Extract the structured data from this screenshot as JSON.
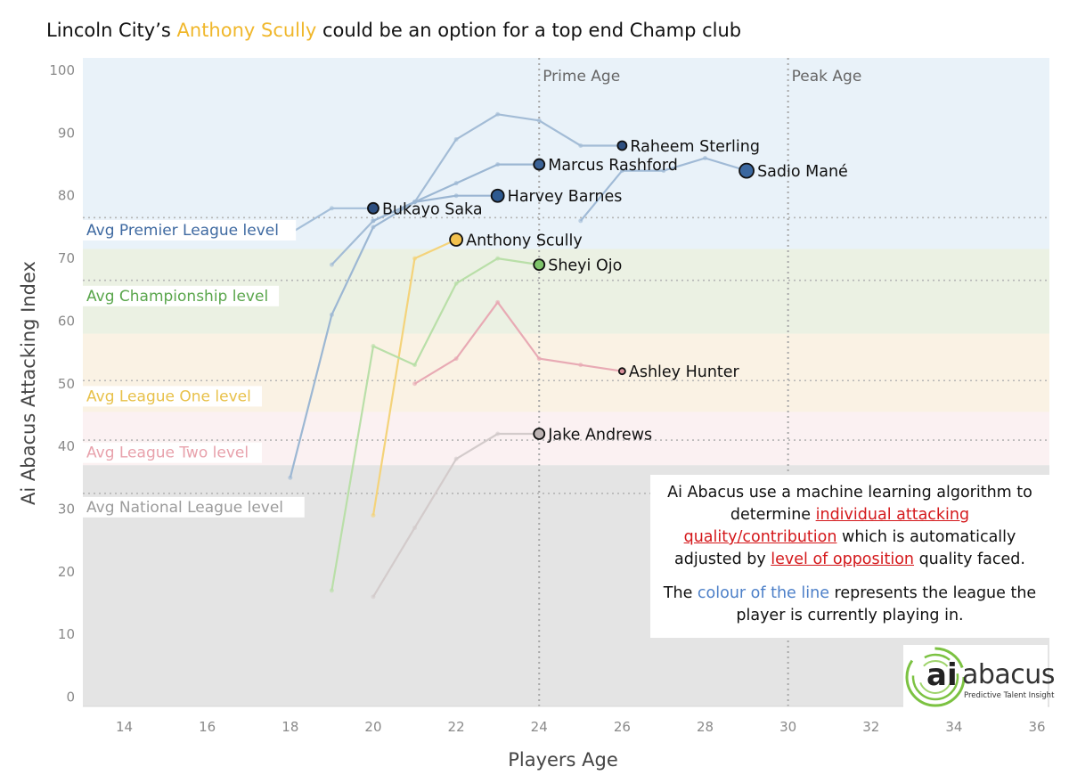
{
  "title": {
    "prefix": "Lincoln City’s ",
    "highlight": "Anthony Scully",
    "suffix": " could be an option for a top end Champ club"
  },
  "note": {
    "p1_a": "Ai Abacus use a machine learning algorithm to determine ",
    "p1_link1": "individual attacking quality/contribution",
    "p1_b": " which is automatically adjusted by ",
    "p1_link2": "level of opposition",
    "p1_c": " quality faced.",
    "p2_a": "The ",
    "p2_blue": "colour of the line",
    "p2_b": " represents the league the player is currently playing in."
  },
  "logo": {
    "mark": "ai",
    "name": "abacus",
    "tagline": "Predictive Talent Insight",
    "accent": "#7cc242"
  },
  "chart_data": {
    "type": "line",
    "xlabel": "Players Age",
    "ylabel": "Ai Abacus Attacking Index",
    "xlim": [
      13,
      36.3
    ],
    "ylim": [
      -1.5,
      102
    ],
    "xticks": [
      "14",
      "16",
      "18",
      "20",
      "22",
      "24",
      "26",
      "28",
      "30",
      "32",
      "34",
      "36"
    ],
    "yticks": [
      "0",
      "10",
      "20",
      "30",
      "40",
      "50",
      "60",
      "70",
      "80",
      "90",
      "100"
    ],
    "grid": false,
    "bands": [
      {
        "label": "Avg Premier League level",
        "y0": 71.5,
        "y1": 102,
        "level": 76.5,
        "fill": "#e9f2f9",
        "text_color": "#3f6aa1",
        "label_y": 74
      },
      {
        "label": "Avg Championship level",
        "y0": 58,
        "y1": 71.5,
        "level": 66.5,
        "fill": "#ebf1e3",
        "text_color": "#5aa64c",
        "label_y": 63.5
      },
      {
        "label": "Avg League One level",
        "y0": 45.5,
        "y1": 58,
        "level": 50.5,
        "fill": "#faf2e4",
        "text_color": "#e8c14a",
        "label_y": 47.5
      },
      {
        "label": "Avg League Two level",
        "y0": 37,
        "y1": 45.5,
        "level": 41,
        "fill": "#fbf1f2",
        "text_color": "#e8a2ac",
        "label_y": 38.5
      },
      {
        "label": "Avg National League level",
        "y0": -1.5,
        "y1": 37,
        "level": 32.5,
        "fill": "#e4e4e4",
        "text_color": "#9b9b9b",
        "label_y": 29.8
      }
    ],
    "reference_lines": [
      {
        "x": 24,
        "label": "Prime Age"
      },
      {
        "x": 30,
        "label": "Peak Age"
      }
    ],
    "series": [
      {
        "name": "Raheem Sterling",
        "color": "#a3bcd6",
        "dot": "#2d4f80",
        "r": 5,
        "x": [
          19,
          20,
          21,
          22,
          23,
          24,
          25,
          26
        ],
        "y": [
          69,
          76,
          79,
          89,
          93,
          92,
          88,
          88
        ],
        "label_age": 26,
        "label_value": 88
      },
      {
        "name": "Marcus Rashford",
        "color": "#9cb7d3",
        "dot": "#3a6296",
        "r": 6,
        "x": [
          18,
          19,
          20,
          21,
          22,
          23,
          24
        ],
        "y": [
          35,
          61,
          75,
          79,
          82,
          85,
          85
        ],
        "label_age": 24,
        "label_value": 85
      },
      {
        "name": "Harvey Barnes",
        "color": "#9ab5d2",
        "dot": "#2e5a90",
        "r": 7,
        "x": [
          20,
          21,
          22,
          23
        ],
        "y": [
          76,
          79,
          80,
          80
        ],
        "label_age": 23,
        "label_value": 80
      },
      {
        "name": "Sadio Mané",
        "color": "#a0bad6",
        "dot": "#3a679f",
        "r": 8,
        "x": [
          25,
          26,
          27,
          28,
          29
        ],
        "y": [
          76,
          84,
          84,
          86,
          84
        ],
        "label_age": 29,
        "label_value": 84
      },
      {
        "name": "Bukayo Saka",
        "color": "#a5bfd9",
        "dot": "#2d4f80",
        "r": 6,
        "x": [
          18,
          19,
          20
        ],
        "y": [
          74,
          78,
          78
        ],
        "label_age": 20,
        "label_value": 78
      },
      {
        "name": "Anthony Scully",
        "color": "#f4d37a",
        "dot": "#f2c14e",
        "r": 7,
        "x": [
          20,
          21,
          22
        ],
        "y": [
          29,
          70,
          73
        ],
        "label_age": 22,
        "label_value": 73
      },
      {
        "name": "Sheyi Ojo",
        "color": "#b9dfa8",
        "dot": "#7ec46a",
        "r": 6,
        "x": [
          19,
          20,
          21,
          22,
          23,
          24
        ],
        "y": [
          17,
          56,
          53,
          66,
          70,
          69
        ],
        "label_age": 24,
        "label_value": 69
      },
      {
        "name": "Ashley Hunter",
        "color": "#e8aab4",
        "dot": "#d9909b",
        "r": 3.5,
        "x": [
          21,
          22,
          23,
          24,
          25,
          26
        ],
        "y": [
          50,
          54,
          63,
          54,
          53,
          52
        ],
        "label_age": 26,
        "label_value": 52
      },
      {
        "name": "Jake Andrews",
        "color": "#d3cbcb",
        "dot": "#bcb3b3",
        "r": 6,
        "x": [
          20,
          21,
          22,
          23,
          24
        ],
        "y": [
          16,
          27,
          38,
          42,
          42
        ],
        "label_age": 24,
        "label_value": 42
      }
    ]
  }
}
